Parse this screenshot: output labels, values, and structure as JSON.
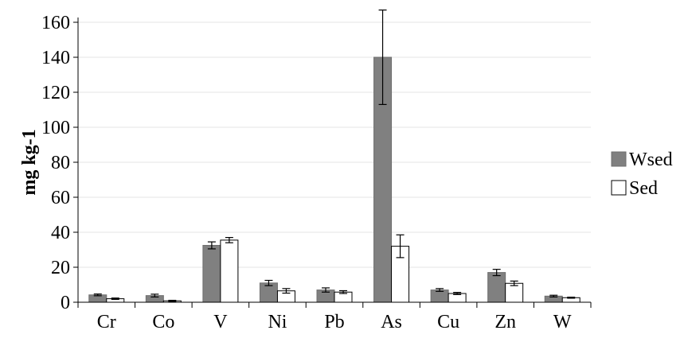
{
  "chart_data": {
    "type": "bar",
    "title": "",
    "xlabel": "",
    "ylabel": "mg kg-1",
    "ylim": [
      0,
      160
    ],
    "yticks": [
      0,
      20,
      40,
      60,
      80,
      100,
      120,
      140,
      160
    ],
    "grid": true,
    "legend_position": "right",
    "categories": [
      "Cr",
      "Co",
      "V",
      "Ni",
      "Pb",
      "As",
      "Cu",
      "Zn",
      "W"
    ],
    "series": [
      {
        "name": "Wsed",
        "color": "#808080",
        "values": [
          4.2,
          3.8,
          32.5,
          11.0,
          7.0,
          140.0,
          7.0,
          17.0,
          3.5
        ],
        "errors": [
          0.5,
          0.8,
          2.0,
          1.5,
          1.2,
          27.0,
          0.8,
          1.8,
          0.5
        ]
      },
      {
        "name": "Sed",
        "color": "#ffffff",
        "values": [
          2.0,
          0.8,
          35.5,
          6.5,
          5.8,
          32.0,
          5.0,
          10.8,
          2.6
        ],
        "errors": [
          0.4,
          0.3,
          1.5,
          1.3,
          0.8,
          6.5,
          0.6,
          1.3,
          0.3
        ]
      }
    ]
  }
}
